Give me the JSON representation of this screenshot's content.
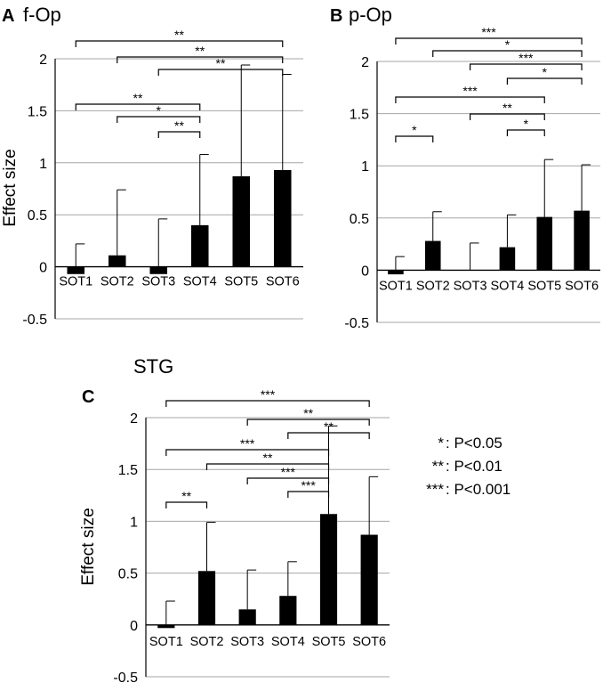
{
  "chart_data": [
    {
      "panel_id": "A",
      "type": "bar",
      "title": "f-Op",
      "ylabel": "Effect size",
      "xlabel": "",
      "ylim": [
        -0.5,
        2.0
      ],
      "yticks": [
        -0.5,
        0,
        0.5,
        1,
        1.5,
        2
      ],
      "ytick_labels": [
        "-0.5",
        "0",
        "0.5",
        "1",
        "1.5",
        "2"
      ],
      "grid": true,
      "categories": [
        "SOT1",
        "SOT2",
        "SOT3",
        "SOT4",
        "SOT5",
        "SOT6"
      ],
      "values": [
        -0.07,
        0.11,
        -0.07,
        0.4,
        0.87,
        0.93
      ],
      "error_upper": [
        0.22,
        0.74,
        0.46,
        1.08,
        1.94,
        1.85
      ],
      "comparisons": [
        {
          "from": "SOT1",
          "to": "SOT6",
          "label": "**"
        },
        {
          "from": "SOT2",
          "to": "SOT6",
          "label": "**"
        },
        {
          "from": "SOT3",
          "to": "SOT6",
          "label": "**"
        },
        {
          "from": "SOT1",
          "to": "SOT4",
          "label": "**"
        },
        {
          "from": "SOT2",
          "to": "SOT4",
          "label": "*"
        },
        {
          "from": "SOT3",
          "to": "SOT4",
          "label": "**"
        }
      ]
    },
    {
      "panel_id": "B",
      "type": "bar",
      "title": "p-Op",
      "ylabel": "",
      "xlabel": "",
      "ylim": [
        -0.5,
        2.0
      ],
      "yticks": [
        -0.5,
        0,
        0.5,
        1,
        1.5,
        2
      ],
      "ytick_labels": [
        "-0.5",
        "0",
        "0.5",
        "1",
        "1.5",
        "2"
      ],
      "grid": true,
      "categories": [
        "SOT1",
        "SOT2",
        "SOT3",
        "SOT4",
        "SOT5",
        "SOT6"
      ],
      "values": [
        -0.04,
        0.28,
        0.0,
        0.22,
        0.51,
        0.57
      ],
      "error_upper": [
        0.13,
        0.56,
        0.26,
        0.53,
        1.06,
        1.01
      ],
      "comparisons": [
        {
          "from": "SOT1",
          "to": "SOT6",
          "label": "***"
        },
        {
          "from": "SOT2",
          "to": "SOT6",
          "label": "*"
        },
        {
          "from": "SOT3",
          "to": "SOT6",
          "label": "***"
        },
        {
          "from": "SOT4",
          "to": "SOT6",
          "label": "*"
        },
        {
          "from": "SOT1",
          "to": "SOT5",
          "label": "***"
        },
        {
          "from": "SOT3",
          "to": "SOT5",
          "label": "**"
        },
        {
          "from": "SOT4",
          "to": "SOT5",
          "label": "*"
        },
        {
          "from": "SOT1",
          "to": "SOT2",
          "label": "*"
        }
      ]
    },
    {
      "panel_id": "C",
      "type": "bar",
      "title": "STG",
      "ylabel": "Effect size",
      "xlabel": "",
      "ylim": [
        -0.5,
        2.0
      ],
      "yticks": [
        -0.5,
        0,
        0.5,
        1,
        1.5,
        2
      ],
      "ytick_labels": [
        "-0.5",
        "0",
        "0.5",
        "1",
        "1.5",
        "2"
      ],
      "grid": true,
      "categories": [
        "SOT1",
        "SOT2",
        "SOT3",
        "SOT4",
        "SOT5",
        "SOT6"
      ],
      "values": [
        -0.03,
        0.52,
        0.15,
        0.28,
        1.07,
        0.87
      ],
      "error_upper": [
        0.23,
        0.99,
        0.53,
        0.61,
        1.92,
        1.43
      ],
      "comparisons": [
        {
          "from": "SOT1",
          "to": "SOT6",
          "label": "***"
        },
        {
          "from": "SOT3",
          "to": "SOT6",
          "label": "**"
        },
        {
          "from": "SOT4",
          "to": "SOT6",
          "label": "**"
        },
        {
          "from": "SOT1",
          "to": "SOT5",
          "label": "***"
        },
        {
          "from": "SOT2",
          "to": "SOT5",
          "label": "**"
        },
        {
          "from": "SOT3",
          "to": "SOT5",
          "label": "***"
        },
        {
          "from": "SOT4",
          "to": "SOT5",
          "label": "***"
        },
        {
          "from": "SOT1",
          "to": "SOT2",
          "label": "**"
        }
      ]
    }
  ],
  "legend": {
    "items": [
      {
        "stars": "*",
        "text": ": P<0.05"
      },
      {
        "stars": "**",
        "text": ": P<0.01"
      },
      {
        "stars": "***",
        "text": ": P<0.001"
      }
    ]
  },
  "colors": {
    "bar": "#000000",
    "grid": "#a6a6a6",
    "text": "#000000",
    "background": "#ffffff"
  }
}
